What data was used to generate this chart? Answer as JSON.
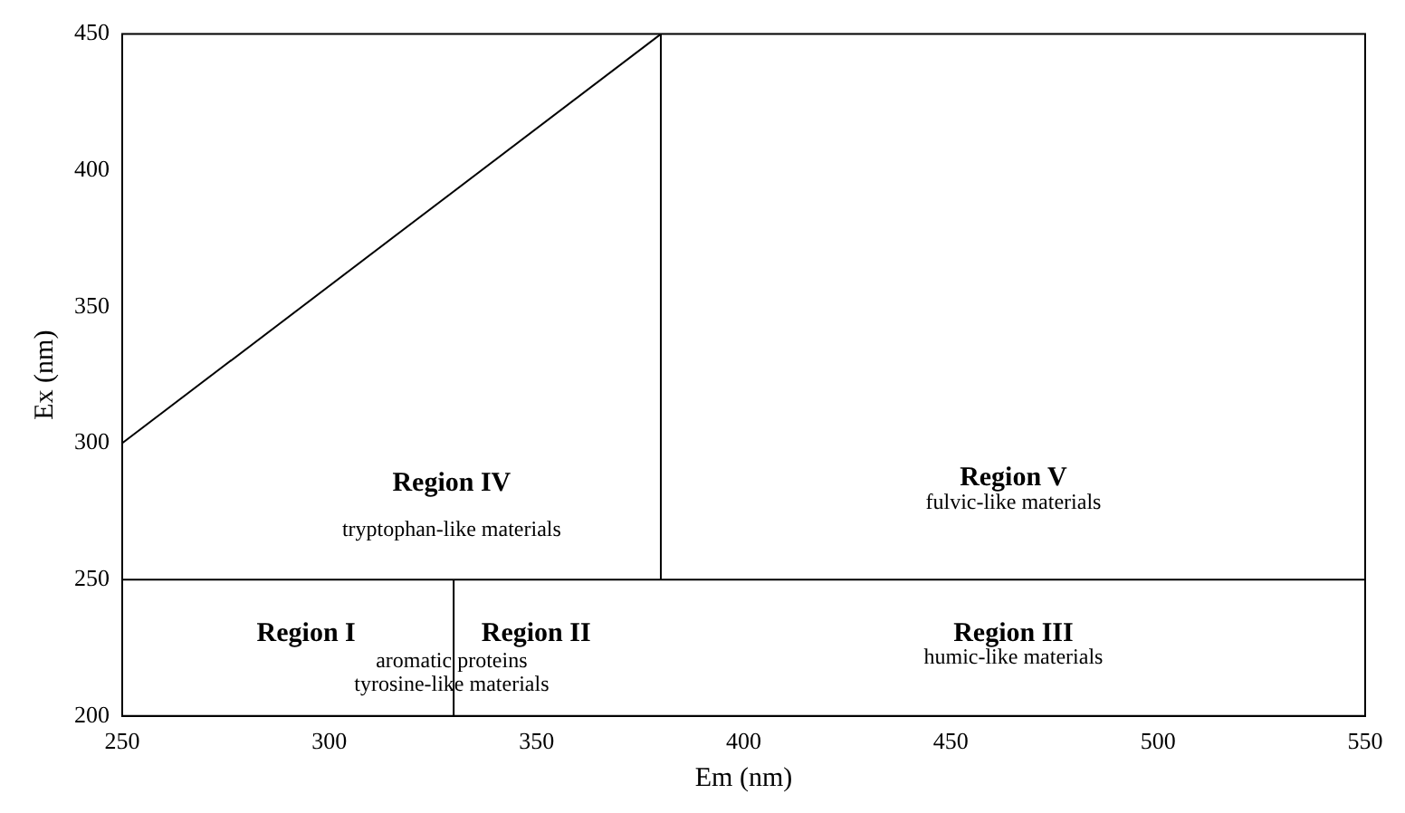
{
  "chart_data": {
    "type": "line",
    "xlabel": "Em (nm)",
    "ylabel": "Ex (nm)",
    "xlim": [
      250,
      550
    ],
    "xticks": [
      250,
      300,
      350,
      400,
      450,
      500,
      550
    ],
    "ylim": [
      200,
      450
    ],
    "yticks": [
      200,
      250,
      300,
      350,
      400,
      450
    ],
    "grid": false,
    "legend": false,
    "marker": "none",
    "line_style": "solid",
    "series": [
      {
        "color": "#000000",
        "x": [
          250,
          380
        ],
        "values": [
          300,
          450
        ]
      },
      {
        "color": "#000000",
        "x": [
          380,
          380
        ],
        "values": [
          250,
          450
        ]
      },
      {
        "color": "#000000",
        "x": [
          250,
          550
        ],
        "values": [
          250,
          250
        ]
      },
      {
        "color": "#000000",
        "x": [
          330,
          330
        ],
        "values": [
          200,
          250
        ]
      }
    ],
    "annotations": [
      "Region I",
      "aromatic proteins",
      "Region II",
      "tyrosine-like materials",
      "Region III",
      "humic-like materials",
      "Region IV",
      "tryptophan-like materials",
      "Region V",
      "fulvic-like materials"
    ]
  }
}
